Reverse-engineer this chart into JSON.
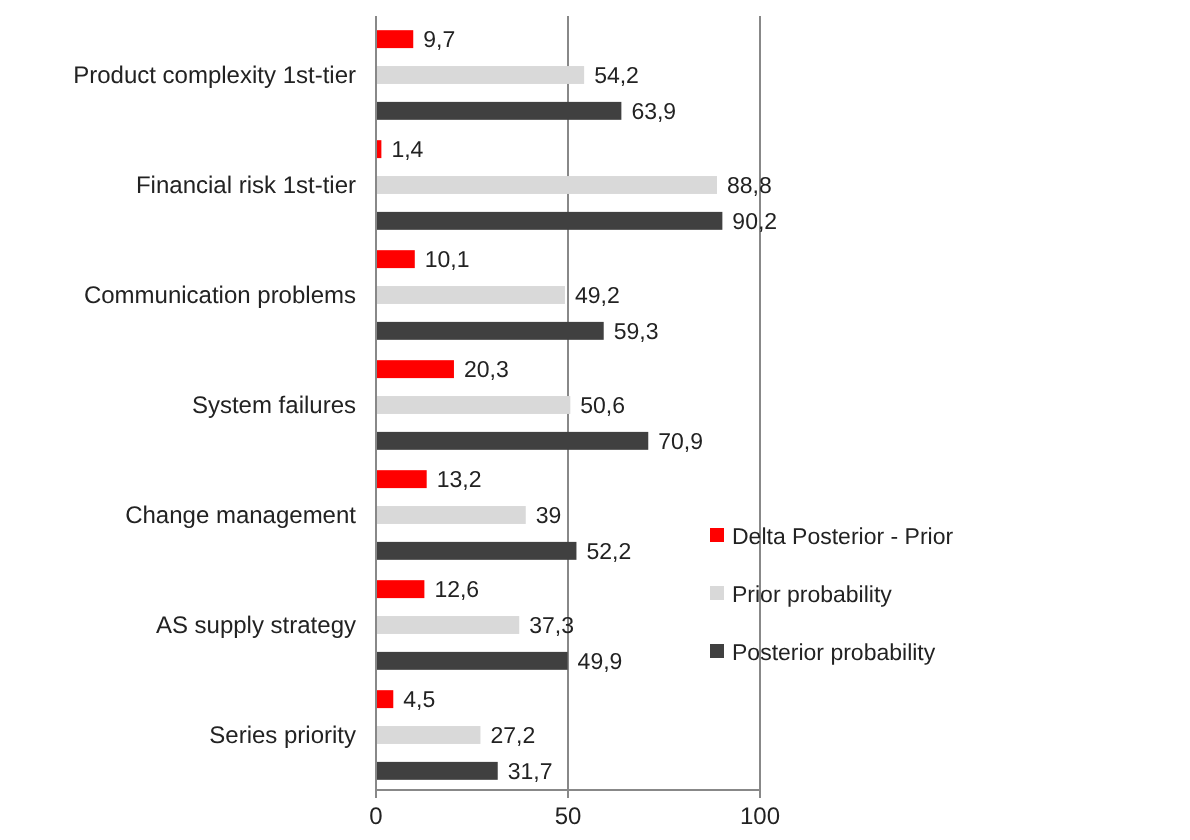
{
  "chart_data": {
    "type": "bar",
    "orientation": "horizontal",
    "categories": [
      "Product complexity 1st-tier",
      "Financial risk 1st-tier",
      "Communication problems",
      "System failures",
      "Change management",
      "AS supply strategy",
      "Series priority"
    ],
    "series": [
      {
        "name": "Delta Posterior - Prior",
        "color": "#ff0000",
        "values": [
          9.7,
          1.4,
          10.1,
          20.3,
          13.2,
          12.6,
          4.5
        ],
        "value_labels": [
          "9,7",
          "1,4",
          "10,1",
          "20,3",
          "13,2",
          "12,6",
          "4,5"
        ]
      },
      {
        "name": "Prior probability",
        "color": "#d9d9d9",
        "values": [
          54.2,
          88.8,
          49.2,
          50.6,
          39,
          37.3,
          27.2
        ],
        "value_labels": [
          "54,2",
          "88,8",
          "49,2",
          "50,6",
          "39",
          "37,3",
          "27,2"
        ]
      },
      {
        "name": "Posterior probability",
        "color": "#404040",
        "values": [
          63.9,
          90.2,
          59.3,
          70.9,
          52.2,
          49.9,
          31.7
        ],
        "value_labels": [
          "63,9",
          "90,2",
          "59,3",
          "70,9",
          "52,2",
          "49,9",
          "31,7"
        ]
      }
    ],
    "xlim": [
      0,
      100
    ],
    "xticks": [
      0,
      50,
      100
    ],
    "grid": "x",
    "legend": "right"
  }
}
